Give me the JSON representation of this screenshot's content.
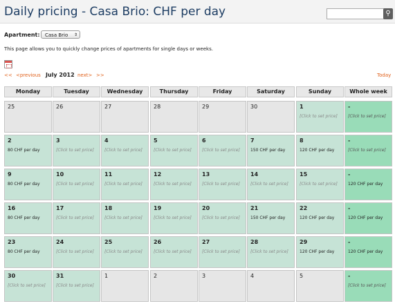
{
  "page": {
    "title": "Daily pricing - Casa Brio: CHF per day",
    "search": {
      "placeholder": "",
      "button_icon": "search-icon"
    }
  },
  "apartment": {
    "label": "Apartment:",
    "selected": "Casa Brio"
  },
  "description": "This page allows you to quickly change prices of apartments for single days or weeks.",
  "calendar_nav": {
    "first": "<<",
    "previous": "<previous",
    "month": "July 2012",
    "next": "next>",
    "last": ">>",
    "today": "Today"
  },
  "calendar": {
    "headers": [
      "Monday",
      "Tuesday",
      "Wednesday",
      "Thursday",
      "Friday",
      "Saturday",
      "Sunday",
      "Whole week"
    ],
    "weeks": [
      {
        "days": [
          {
            "day": "25",
            "price": "",
            "state": "off"
          },
          {
            "day": "26",
            "price": "",
            "state": "off"
          },
          {
            "day": "27",
            "price": "",
            "state": "off"
          },
          {
            "day": "28",
            "price": "",
            "state": "off"
          },
          {
            "day": "29",
            "price": "",
            "state": "off"
          },
          {
            "day": "30",
            "price": "",
            "state": "off"
          },
          {
            "day": "1",
            "price": "[Click to set price]",
            "state": "cur"
          }
        ],
        "week": {
          "day": "-",
          "price": "[Click to set price]"
        }
      },
      {
        "days": [
          {
            "day": "2",
            "price": "80 CHF per day",
            "state": "cur"
          },
          {
            "day": "3",
            "price": "[Click to set price]",
            "state": "cur"
          },
          {
            "day": "4",
            "price": "[Click to set price]",
            "state": "cur"
          },
          {
            "day": "5",
            "price": "[Click to set price]",
            "state": "cur"
          },
          {
            "day": "6",
            "price": "[Click to set price]",
            "state": "cur"
          },
          {
            "day": "7",
            "price": "150 CHF per day",
            "state": "cur"
          },
          {
            "day": "8",
            "price": "120 CHF per day",
            "state": "cur"
          }
        ],
        "week": {
          "day": "-",
          "price": "[Click to set price]"
        }
      },
      {
        "days": [
          {
            "day": "9",
            "price": "80 CHF per day",
            "state": "cur"
          },
          {
            "day": "10",
            "price": "[Click to set price]",
            "state": "cur"
          },
          {
            "day": "11",
            "price": "[Click to set price]",
            "state": "cur"
          },
          {
            "day": "12",
            "price": "[Click to set price]",
            "state": "cur"
          },
          {
            "day": "13",
            "price": "[Click to set price]",
            "state": "cur"
          },
          {
            "day": "14",
            "price": "[Click to set price]",
            "state": "cur"
          },
          {
            "day": "15",
            "price": "[Click to set price]",
            "state": "cur"
          }
        ],
        "week": {
          "day": "-",
          "price": "120 CHF per day"
        }
      },
      {
        "days": [
          {
            "day": "16",
            "price": "80 CHF per day",
            "state": "cur"
          },
          {
            "day": "17",
            "price": "[Click to set price]",
            "state": "cur"
          },
          {
            "day": "18",
            "price": "[Click to set price]",
            "state": "cur"
          },
          {
            "day": "19",
            "price": "[Click to set price]",
            "state": "cur"
          },
          {
            "day": "20",
            "price": "[Click to set price]",
            "state": "cur"
          },
          {
            "day": "21",
            "price": "150 CHF per day",
            "state": "cur"
          },
          {
            "day": "22",
            "price": "120 CHF per day",
            "state": "cur"
          }
        ],
        "week": {
          "day": "-",
          "price": "120 CHF per day"
        }
      },
      {
        "days": [
          {
            "day": "23",
            "price": "80 CHF per day",
            "state": "cur"
          },
          {
            "day": "24",
            "price": "[Click to set price]",
            "state": "cur"
          },
          {
            "day": "25",
            "price": "[Click to set price]",
            "state": "cur"
          },
          {
            "day": "26",
            "price": "[Click to set price]",
            "state": "cur"
          },
          {
            "day": "27",
            "price": "[Click to set price]",
            "state": "cur"
          },
          {
            "day": "28",
            "price": "[Click to set price]",
            "state": "cur"
          },
          {
            "day": "29",
            "price": "120 CHF per day",
            "state": "cur"
          }
        ],
        "week": {
          "day": "-",
          "price": "120 CHF per day"
        }
      },
      {
        "days": [
          {
            "day": "30",
            "price": "[Click to set price]",
            "state": "cur"
          },
          {
            "day": "31",
            "price": "[Click to set price]",
            "state": "cur"
          },
          {
            "day": "1",
            "price": "",
            "state": "off"
          },
          {
            "day": "2",
            "price": "",
            "state": "off"
          },
          {
            "day": "3",
            "price": "",
            "state": "off"
          },
          {
            "day": "4",
            "price": "",
            "state": "off"
          },
          {
            "day": "5",
            "price": "",
            "state": "off"
          }
        ],
        "week": {
          "day": "-",
          "price": "[Click to set price]"
        }
      }
    ]
  },
  "colors": {
    "title": "#1d3d63",
    "link": "#e0601a",
    "cell_current": "#c6e3d6",
    "cell_week": "#99dcb8",
    "cell_other": "#e6e6e6"
  }
}
